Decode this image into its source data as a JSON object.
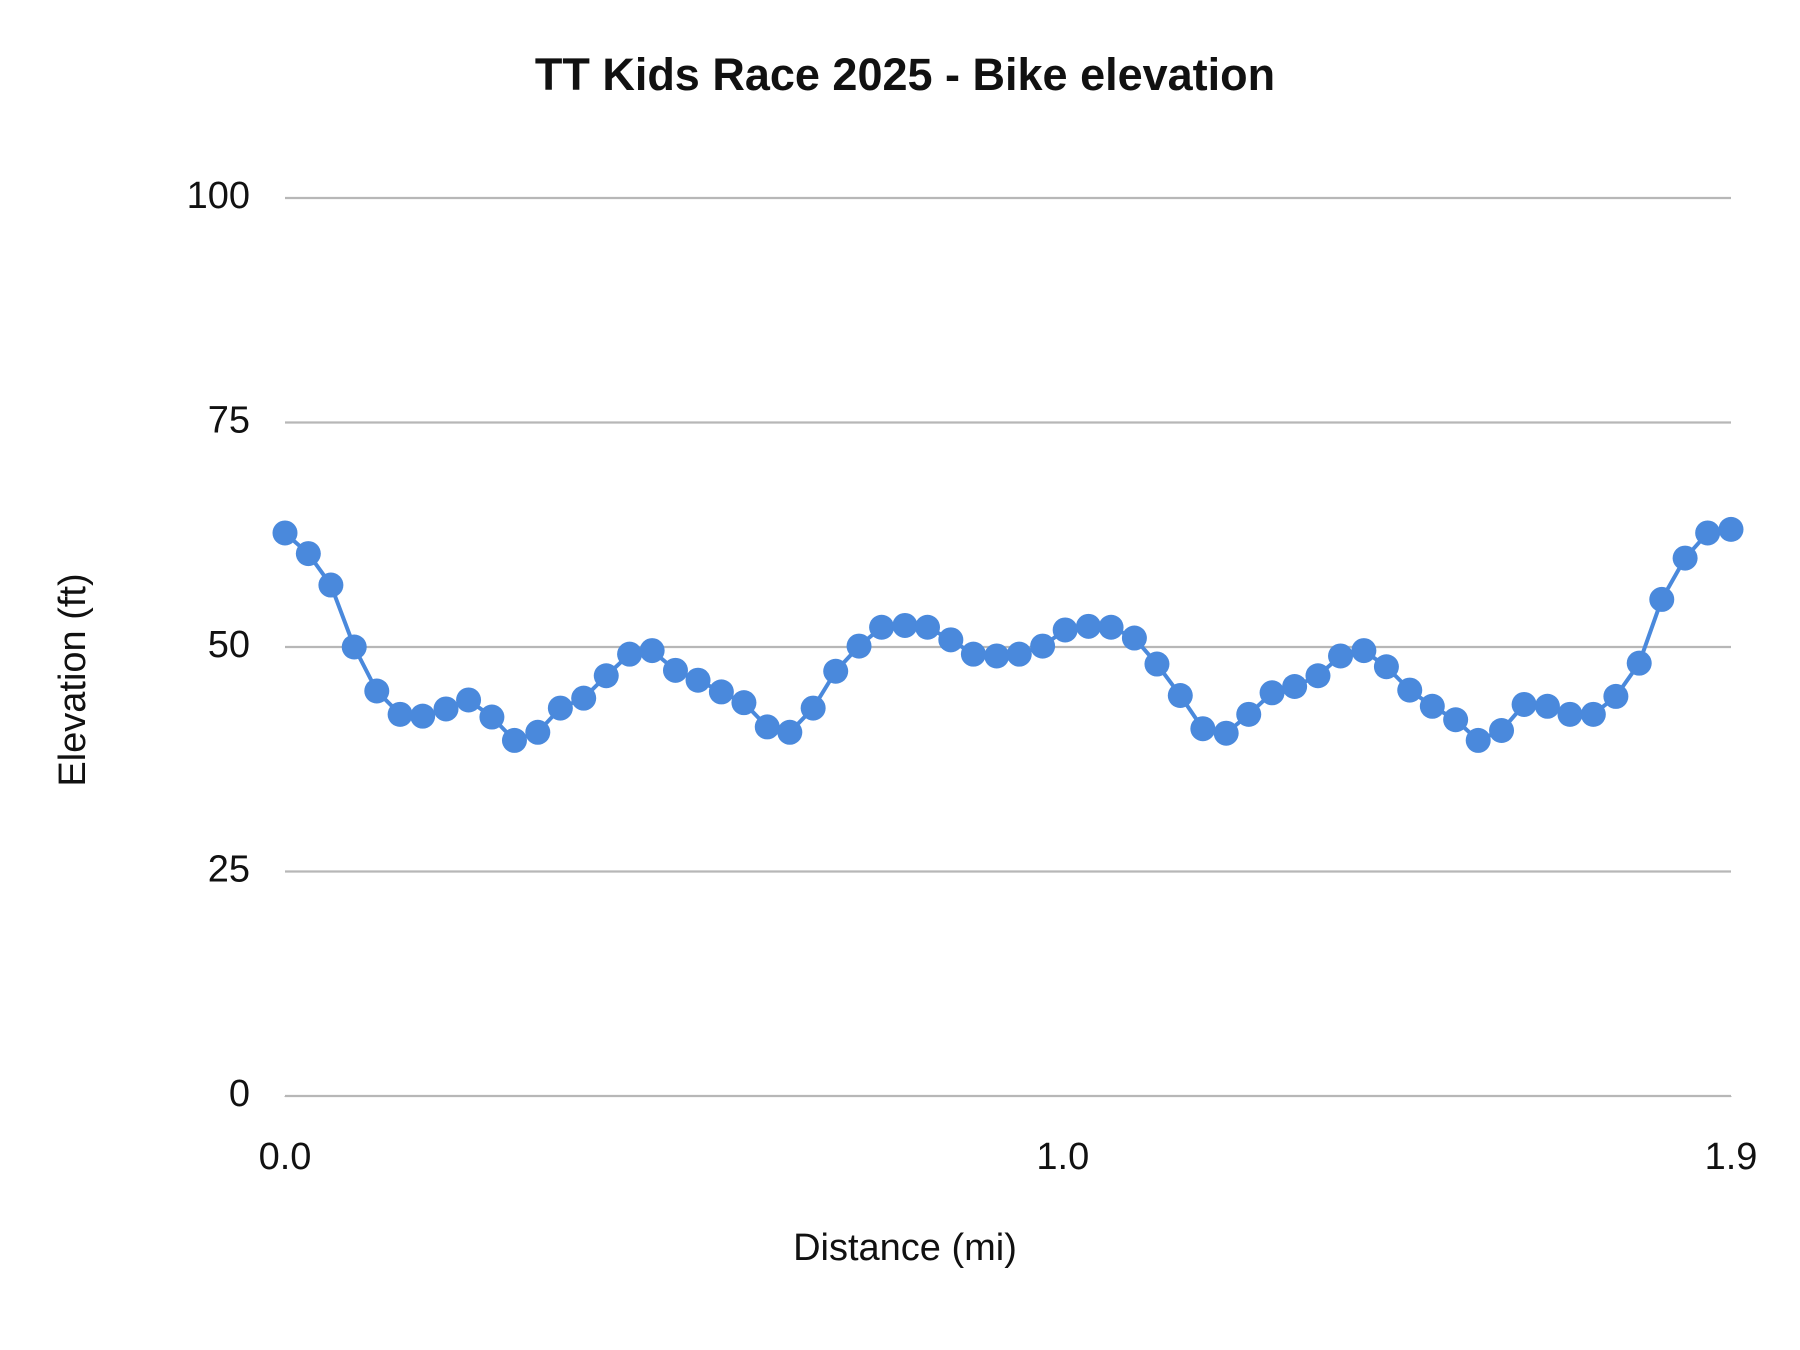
{
  "chart_data": {
    "type": "line",
    "title": "TT Kids Race 2025 - Bike elevation",
    "x_label": "Distance (mi)",
    "y_label": "Elevation (ft)",
    "x": [
      0,
      0.03,
      0.059,
      0.089,
      0.118,
      0.148,
      0.177,
      0.207,
      0.236,
      0.266,
      0.295,
      0.325,
      0.354,
      0.384,
      0.413,
      0.443,
      0.472,
      0.502,
      0.531,
      0.561,
      0.59,
      0.62,
      0.649,
      0.679,
      0.708,
      0.738,
      0.767,
      0.797,
      0.826,
      0.856,
      0.885,
      0.915,
      0.944,
      0.974,
      1.003,
      1.033,
      1.062,
      1.092,
      1.121,
      1.151,
      1.18,
      1.21,
      1.239,
      1.269,
      1.298,
      1.328,
      1.357,
      1.387,
      1.416,
      1.446,
      1.475,
      1.505,
      1.534,
      1.564,
      1.593,
      1.623,
      1.652,
      1.682,
      1.711,
      1.741,
      1.77,
      1.8,
      1.829,
      1.859
    ],
    "values": [
      62.7,
      60.4,
      56.9,
      50.0,
      45.1,
      42.5,
      42.3,
      43.1,
      44.1,
      42.2,
      39.6,
      40.5,
      43.2,
      44.3,
      46.8,
      49.2,
      49.6,
      47.4,
      46.3,
      45.0,
      43.8,
      41.1,
      40.5,
      43.2,
      47.3,
      50.1,
      52.2,
      52.4,
      52.2,
      50.8,
      49.2,
      49.0,
      49.2,
      50.1,
      51.9,
      52.3,
      52.2,
      51.0,
      48.1,
      44.6,
      40.9,
      40.4,
      42.5,
      44.9,
      45.6,
      46.8,
      49.0,
      49.6,
      47.8,
      45.2,
      43.4,
      41.9,
      39.6,
      40.7,
      43.6,
      43.4,
      42.5,
      42.5,
      44.5,
      48.2,
      55.3,
      59.9,
      62.7,
      63.1
    ],
    "color": "#4a89dc",
    "markers": true,
    "xlim": [
      0,
      1.859
    ],
    "xticks": [
      {
        "value": 0,
        "label": "0.0"
      },
      {
        "value": 1,
        "label": "1.0"
      },
      {
        "value": 1.859,
        "label": "1.9"
      }
    ],
    "ylim": [
      0,
      100
    ],
    "yticks": [
      0,
      25,
      50,
      75,
      100
    ],
    "grid": true
  }
}
